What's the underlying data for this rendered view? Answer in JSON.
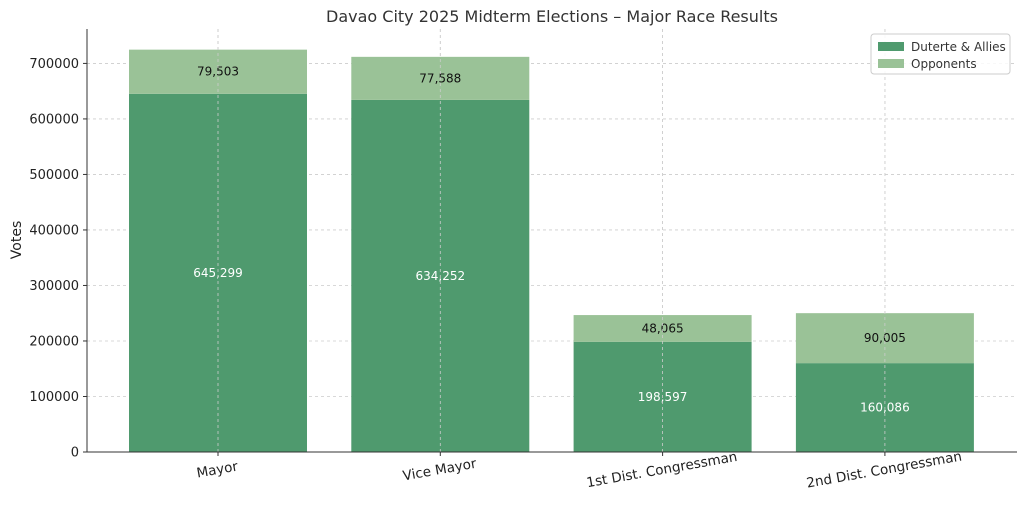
{
  "chart_data": {
    "type": "bar",
    "stacked": true,
    "title": "Davao City 2025 Midterm Elections – Major Race Results",
    "xlabel": "",
    "ylabel": "Votes",
    "categories": [
      "Mayor",
      "Vice Mayor",
      "1st Dist. Congressman",
      "2nd Dist. Congressman"
    ],
    "series": [
      {
        "name": "Duterte & Allies",
        "values": [
          645299,
          634252,
          198597,
          160086
        ],
        "color": "#4f9a6e",
        "labels": [
          "645,299",
          "634,252",
          "198,597",
          "160,086"
        ]
      },
      {
        "name": "Opponents",
        "values": [
          79503,
          77588,
          48065,
          90005
        ],
        "color": "#9ac297",
        "labels": [
          "79,503",
          "77,588",
          "48,065",
          "90,005"
        ]
      }
    ],
    "ylim": [
      0,
      762000
    ],
    "yticks": [
      0,
      100000,
      200000,
      300000,
      400000,
      500000,
      600000,
      700000
    ],
    "ytick_labels": [
      "0",
      "100000",
      "200000",
      "300000",
      "400000",
      "500000",
      "600000",
      "700000"
    ],
    "grid": true,
    "legend_position": "top-right"
  }
}
